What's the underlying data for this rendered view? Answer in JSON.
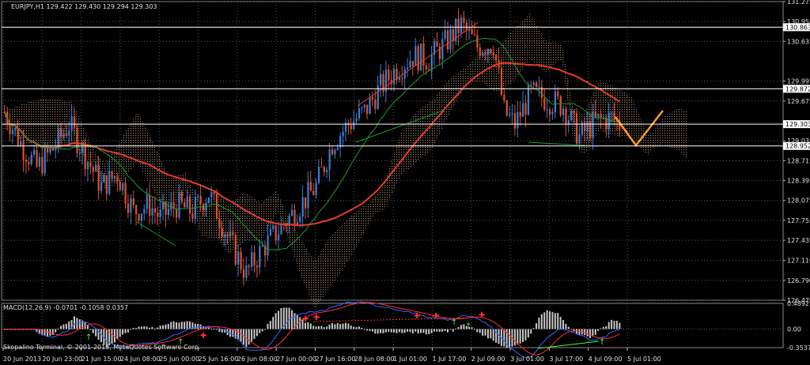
{
  "header": {
    "symbol_info": "EURJPY,H1  129.422 129.430 129.294 129.303"
  },
  "macd": {
    "label": "MACD(12,26,9) -0.0701 -0.1058 0.0357"
  },
  "watermark": "Skopalino Terminal, © 2001-2013, MetaQuotes Software Corp.",
  "colors": {
    "background": "#000000",
    "grid": "#5a5a5a",
    "bull_candle": "#3a7fd5",
    "bear_candle": "#e0522a",
    "ma_slow": "#e83a2a",
    "ma_fast": "#1f9a2a",
    "cloud": "#c8a48a",
    "projection": "#ff9b2a",
    "level_line": "#ffffff",
    "macd_line": "#3a62ff",
    "signal_line": "#ff3030",
    "histogram": "#c8c8c8",
    "up_arrow": "#3aff3a",
    "down_arrow": "#ff3030"
  },
  "price_axis": {
    "ticks": [
      "131.275",
      "130.955",
      "130.635",
      "129.995",
      "129.675",
      "129.035",
      "128.715",
      "128.395",
      "128.075",
      "127.755",
      "127.435",
      "127.110",
      "126.790",
      "126.470"
    ],
    "range": [
      126.47,
      131.275
    ],
    "price_labels": [
      {
        "text": "130.863",
        "value": 130.863
      },
      {
        "text": "129.872",
        "value": 129.872
      },
      {
        "text": "129.303",
        "value": 129.303
      },
      {
        "text": "128.952",
        "value": 128.952
      }
    ]
  },
  "macd_axis": {
    "ticks": [
      "0.4892",
      "0.00",
      "-0.3537"
    ]
  },
  "time_axis": {
    "labels": [
      "20 Jun 2013",
      "20 Jun 23:00",
      "21 Jun 15:00",
      "24 Jun 08:00",
      "25 Jun 00:00",
      "25 Jun 16:00",
      "26 Jun 08:00",
      "27 Jun 00:00",
      "27 Jun 16:00",
      "28 Jun 08:00",
      "1 Jul 01:00",
      "1 Jul 17:00",
      "2 Jul 09:00",
      "3 Jul 01:00",
      "3 Jul 17:00",
      "4 Jul 09:00",
      "5 Jul 01:00"
    ]
  },
  "chart_data": [
    {
      "type": "line",
      "title": "EURJPY,H1",
      "x": [
        "20 Jun 2013",
        "20 Jun 23:00",
        "21 Jun 15:00",
        "24 Jun 08:00",
        "25 Jun 00:00",
        "25 Jun 16:00",
        "26 Jun 08:00",
        "27 Jun 00:00",
        "27 Jun 16:00",
        "28 Jun 08:00",
        "1 Jul 01:00",
        "1 Jul 17:00",
        "2 Jul 09:00",
        "3 Jul 01:00",
        "3 Jul 17:00",
        "4 Jul 09:00",
        "5 Jul 01:00"
      ],
      "series": [
        {
          "name": "close",
          "values": [
            129.55,
            128.55,
            128.75,
            128.3,
            128.0,
            127.95,
            127.2,
            127.65,
            128.15,
            129.0,
            129.7,
            130.1,
            130.75,
            129.6,
            129.7,
            129.1,
            129.3
          ]
        }
      ],
      "ylim": [
        126.47,
        131.275
      ]
    },
    {
      "type": "bar",
      "title": "MACD(12,26,9)",
      "categories": [
        "20 Jun 2013",
        "20 Jun 23:00",
        "21 Jun 15:00",
        "24 Jun 08:00",
        "25 Jun 00:00",
        "25 Jun 16:00",
        "26 Jun 08:00",
        "27 Jun 00:00",
        "27 Jun 16:00",
        "28 Jun 08:00",
        "1 Jul 01:00",
        "1 Jul 17:00",
        "2 Jul 09:00",
        "3 Jul 01:00",
        "3 Jul 17:00",
        "4 Jul 09:00",
        "5 Jul 01:00"
      ],
      "values": [
        0.2,
        -0.05,
        -0.1,
        -0.2,
        -0.15,
        -0.1,
        -0.3,
        -0.2,
        0.1,
        0.3,
        0.35,
        0.3,
        0.45,
        -0.1,
        -0.25,
        -0.35,
        -0.07
      ],
      "ylim": [
        -0.3537,
        0.4892
      ]
    }
  ]
}
